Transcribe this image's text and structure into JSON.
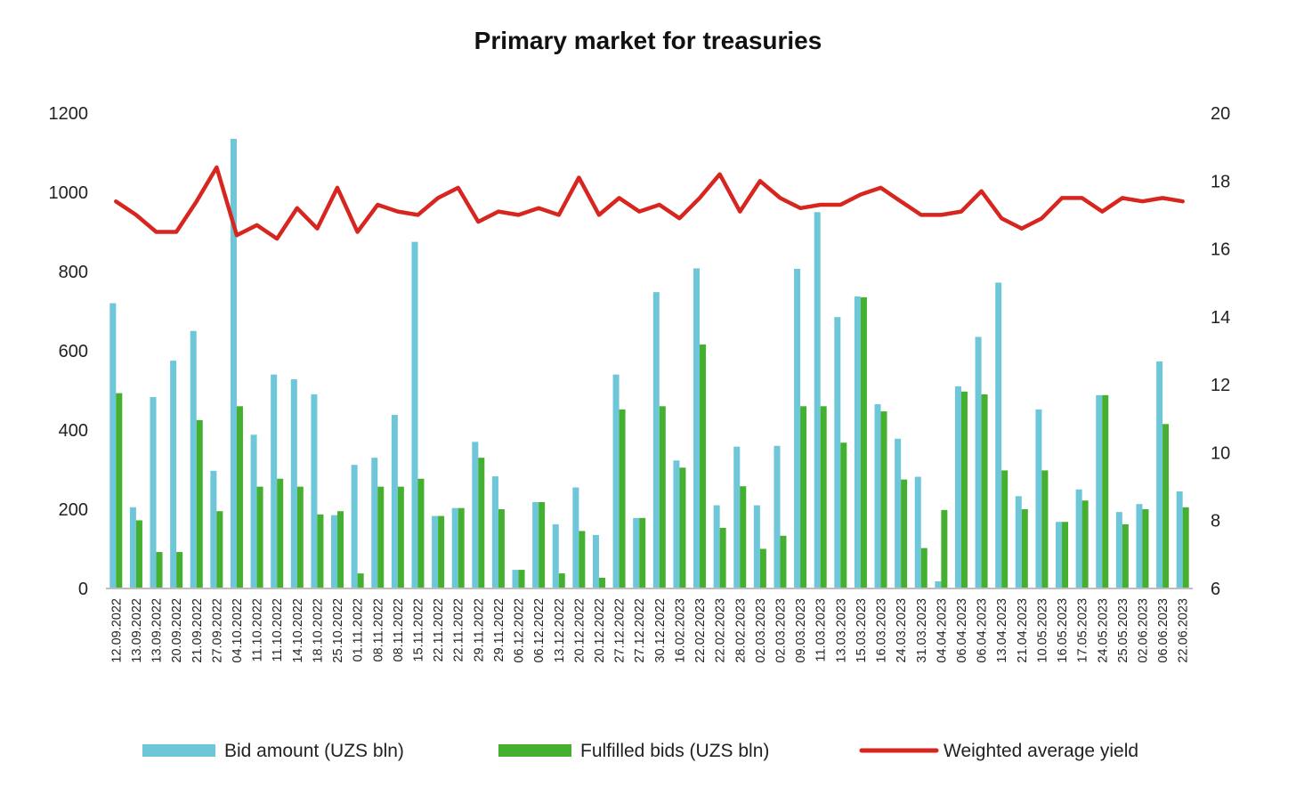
{
  "chart_data": {
    "type": "bar",
    "title": "Primary market for treasuries",
    "categories": [
      "12.09.2022",
      "13.09.2022",
      "13.09.2022",
      "20.09.2022",
      "21.09.2022",
      "27.09.2022",
      "04.10.2022",
      "11.10.2022",
      "11.10.2022",
      "14.10.2022",
      "18.10.2022",
      "25.10.2022",
      "01.11.2022",
      "08.11.2022",
      "08.11.2022",
      "15.11.2022",
      "22.11.2022",
      "22.11.2022",
      "29.11.2022",
      "29.11.2022",
      "06.12.2022",
      "06.12.2022",
      "13.12.2022",
      "20.12.2022",
      "20.12.2022",
      "27.12.2022",
      "27.12.2022",
      "30.12.2022",
      "16.02.2023",
      "22.02.2023",
      "22.02.2023",
      "28.02.2023",
      "02.03.2023",
      "02.03.2023",
      "09.03.2023",
      "11.03.2023",
      "13.03.2023",
      "15.03.2023",
      "16.03.2023",
      "24.03.2023",
      "31.03.2023",
      "04.04.2023",
      "06.04.2023",
      "06.04.2023",
      "13.04.2023",
      "21.04.2023",
      "10.05.2023",
      "16.05.2023",
      "17.05.2023",
      "24.05.2023",
      "25.05.2023",
      "02.06.2023",
      "06.06.2023",
      "22.06.2023"
    ],
    "series": [
      {
        "name": "Bid amount (UZS bln)",
        "color": "#6EC6D9",
        "axis": "left",
        "type": "bar",
        "values": [
          720,
          205,
          483,
          575,
          650,
          297,
          1135,
          388,
          540,
          528,
          490,
          185,
          312,
          330,
          438,
          875,
          183,
          203,
          370,
          283,
          47,
          218,
          162,
          255,
          135,
          540,
          178,
          748,
          323,
          808,
          210,
          358,
          210,
          360,
          807,
          950,
          685,
          737,
          465,
          378,
          282,
          18,
          510,
          635,
          772,
          233,
          452,
          168,
          250,
          488,
          193,
          213,
          573,
          245
        ]
      },
      {
        "name": "Fulfilled bids (UZS bln)",
        "color": "#45B02F",
        "axis": "left",
        "type": "bar",
        "values": [
          493,
          172,
          92,
          92,
          425,
          195,
          460,
          257,
          277,
          257,
          187,
          195,
          38,
          257,
          257,
          277,
          183,
          203,
          330,
          200,
          47,
          218,
          38,
          145,
          27,
          452,
          178,
          460,
          305,
          616,
          153,
          258,
          100,
          133,
          460,
          460,
          368,
          735,
          447,
          275,
          102,
          198,
          497,
          490,
          298,
          200,
          298,
          168,
          222,
          488,
          162,
          200,
          415,
          205
        ]
      },
      {
        "name": "Weighted average yield",
        "color": "#D7261F",
        "axis": "right",
        "type": "line",
        "values": [
          17.4,
          17.0,
          16.5,
          16.5,
          17.4,
          18.4,
          16.4,
          16.7,
          16.3,
          17.2,
          16.6,
          17.8,
          16.5,
          17.3,
          17.1,
          17.0,
          17.5,
          17.8,
          16.8,
          17.1,
          17.0,
          17.2,
          17.0,
          18.1,
          17.0,
          17.5,
          17.1,
          17.3,
          16.9,
          17.5,
          18.2,
          17.1,
          18.0,
          17.5,
          17.2,
          17.3,
          17.3,
          17.6,
          17.8,
          17.4,
          17.0,
          17.0,
          17.1,
          17.7,
          16.9,
          16.6,
          16.9,
          17.5,
          17.5,
          17.1,
          17.5,
          17.4,
          17.5,
          17.4
        ]
      }
    ],
    "y_left": {
      "min": 0,
      "max": 1200,
      "ticks": [
        0,
        200,
        400,
        600,
        800,
        1000,
        1200
      ]
    },
    "y_right": {
      "min": 6,
      "max": 20,
      "ticks": [
        6,
        8,
        10,
        12,
        14,
        16,
        18,
        20
      ]
    },
    "grid": false,
    "legend_position": "bottom"
  }
}
